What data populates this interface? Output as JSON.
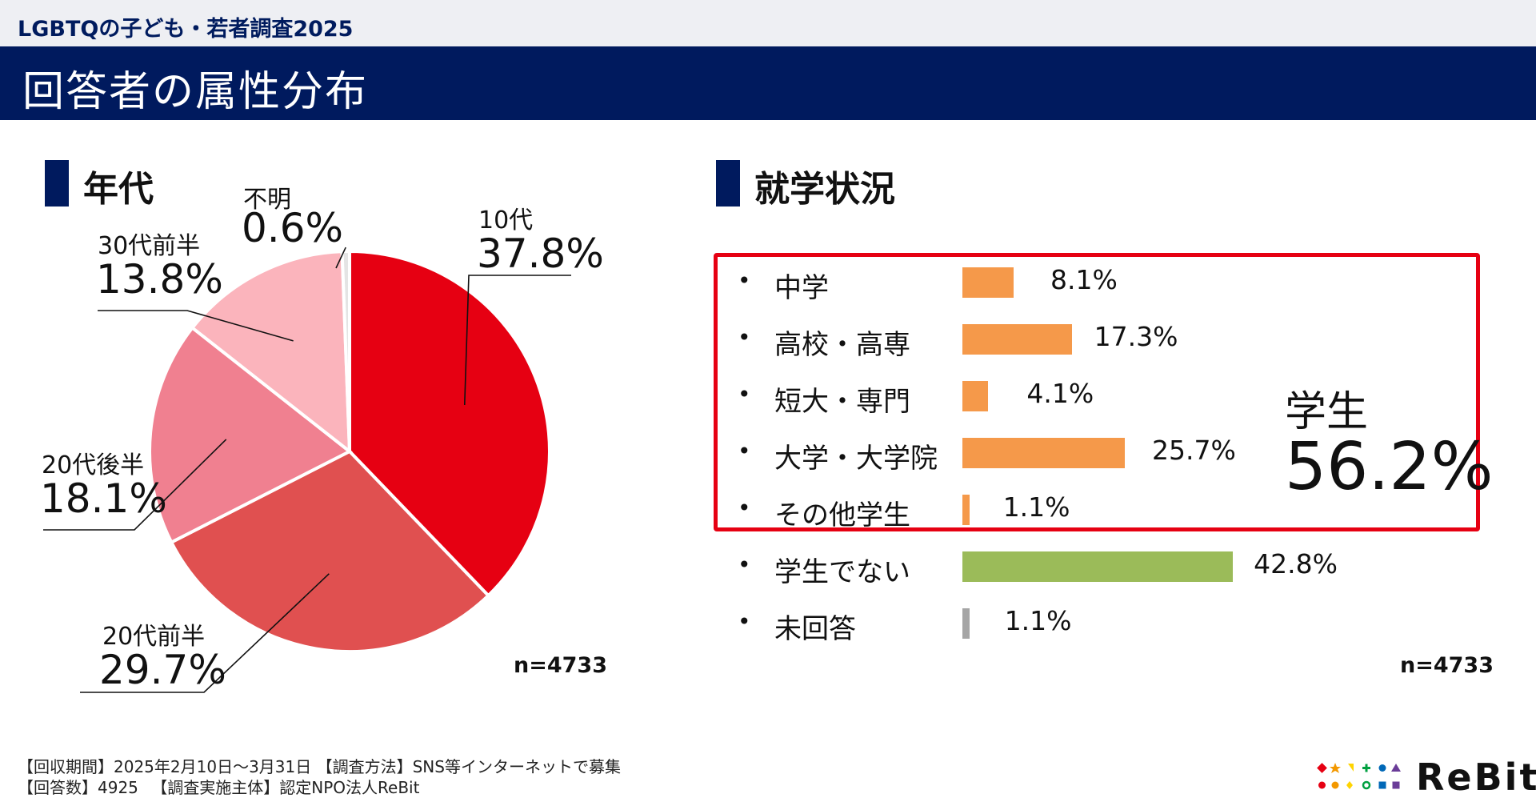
{
  "header": {
    "supertitle": "LGBTQの子ども・若者調査2025",
    "title": "回答者の属性分布"
  },
  "age_section": {
    "title": "年代",
    "n_note": "n=4733"
  },
  "education_section": {
    "title": "就学状況",
    "n_note": "n=4733",
    "student_label": "学生",
    "student_total": "56.2%"
  },
  "colors": {
    "navy": "#001a5e",
    "pie": [
      "#e60012",
      "#e05050",
      "#f08090",
      "#fbb4bc",
      "#e4e4e4"
    ],
    "bar_student": "#f5994a",
    "bar_nonstudent": "#9bbb59",
    "bar_noanswer": "#a5a5a5",
    "highlight_border": "#e60012"
  },
  "chart_data": [
    {
      "type": "pie",
      "title": "年代",
      "categories": [
        "10代",
        "20代前半",
        "20代後半",
        "30代前半",
        "不明"
      ],
      "values": [
        37.8,
        29.7,
        18.1,
        13.8,
        0.6
      ],
      "labels": [
        "37.8%",
        "29.7%",
        "18.1%",
        "13.8%",
        "0.6%"
      ]
    },
    {
      "type": "bar",
      "title": "就学状況",
      "orientation": "horizontal",
      "categories": [
        "中学",
        "高校・高専",
        "短大・専門",
        "大学・大学院",
        "その他学生",
        "学生でない",
        "未回答"
      ],
      "values": [
        8.1,
        17.3,
        4.1,
        25.7,
        1.1,
        42.8,
        1.1
      ],
      "labels": [
        "8.1%",
        "17.3%",
        "4.1%",
        "25.7%",
        "1.1%",
        "42.8%",
        "1.1%"
      ],
      "groups": [
        "student",
        "student",
        "student",
        "student",
        "student",
        "nonstudent",
        "noanswer"
      ]
    }
  ],
  "footer": {
    "line1": "【回収期間】2025年2月10日～3月31日 【調査方法】SNS等インターネットで募集",
    "line2": "【回答数】4925 　【調査実施主体】認定NPO法人ReBit"
  },
  "logo": {
    "text": "ReBit"
  }
}
